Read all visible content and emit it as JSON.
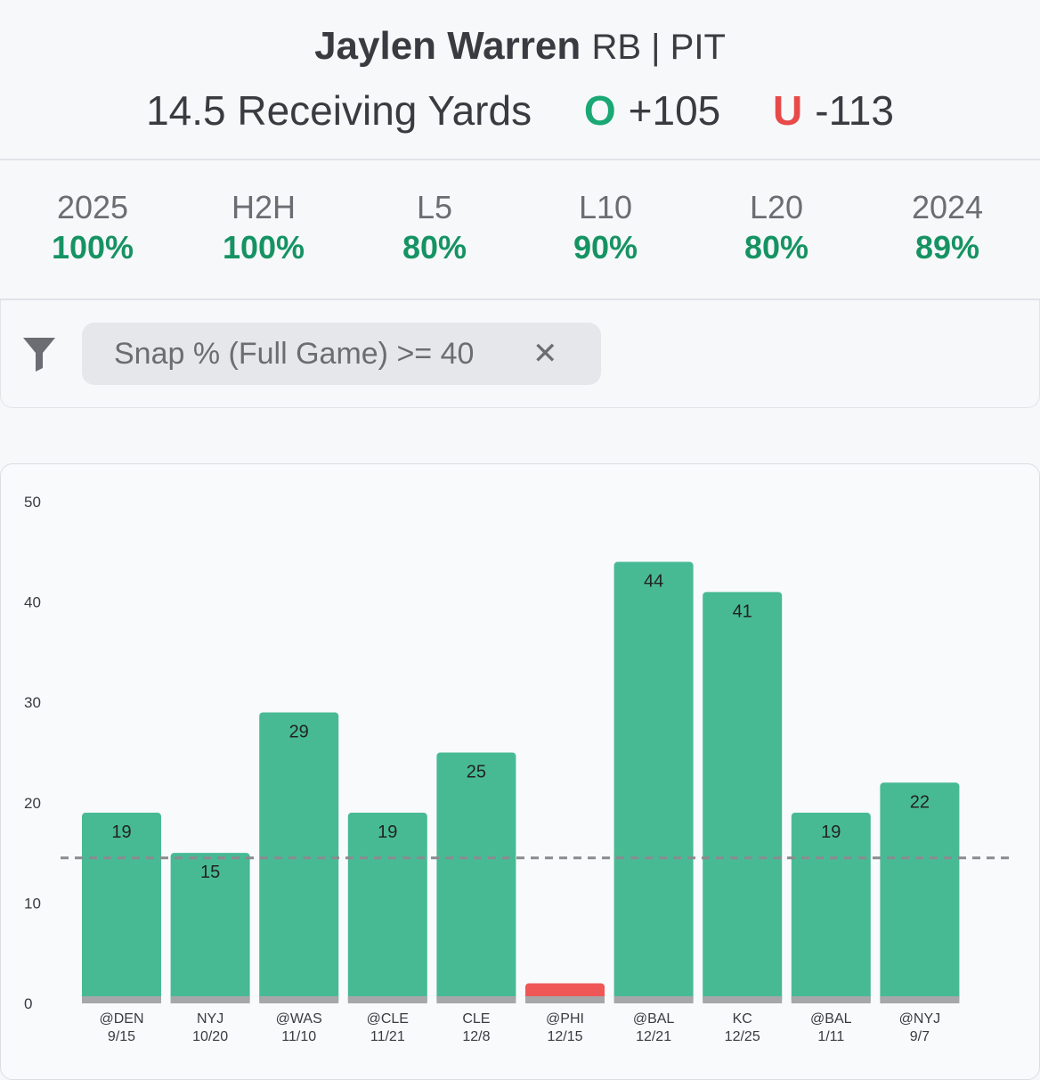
{
  "header": {
    "player_name": "Jaylen Warren",
    "player_pos_team": "RB | PIT",
    "line_text": "14.5 Receiving Yards",
    "over_letter": "O",
    "over_odds": "+105",
    "under_letter": "U",
    "under_odds": "-113"
  },
  "hit_rates": [
    {
      "label": "2025",
      "value": "100%"
    },
    {
      "label": "H2H",
      "value": "100%"
    },
    {
      "label": "L5",
      "value": "80%"
    },
    {
      "label": "L10",
      "value": "90%"
    },
    {
      "label": "L20",
      "value": "80%"
    },
    {
      "label": "2024",
      "value": "89%"
    }
  ],
  "filter": {
    "icon": "funnel-icon",
    "chip_text": "Snap % (Full Game) >= 40",
    "close_symbol": "✕"
  },
  "colors": {
    "over": "#47ba94",
    "under": "#ef5757",
    "base": "#a6a7a9",
    "line": "#8a8b8f",
    "accent_green": "#169363",
    "accent_red": "#e84a4a"
  },
  "chart_data": {
    "type": "bar",
    "categories": [
      "@DEN",
      "NYJ",
      "@WAS",
      "@CLE",
      "CLE",
      "@PHI",
      "@BAL",
      "KC",
      "@BAL",
      "@NYJ"
    ],
    "dates": [
      "9/15",
      "10/20",
      "11/10",
      "11/21",
      "12/8",
      "12/15",
      "12/21",
      "12/25",
      "1/11",
      "9/7"
    ],
    "values": [
      19,
      15,
      29,
      19,
      25,
      2,
      44,
      41,
      19,
      22
    ],
    "value_labels": [
      "19",
      "15",
      "29",
      "19",
      "25",
      "",
      "44",
      "41",
      "19",
      "22"
    ],
    "threshold": 14.5,
    "yticks": [
      0,
      10,
      20,
      30,
      40,
      50
    ],
    "ylim": [
      0,
      50
    ],
    "grid": false
  }
}
